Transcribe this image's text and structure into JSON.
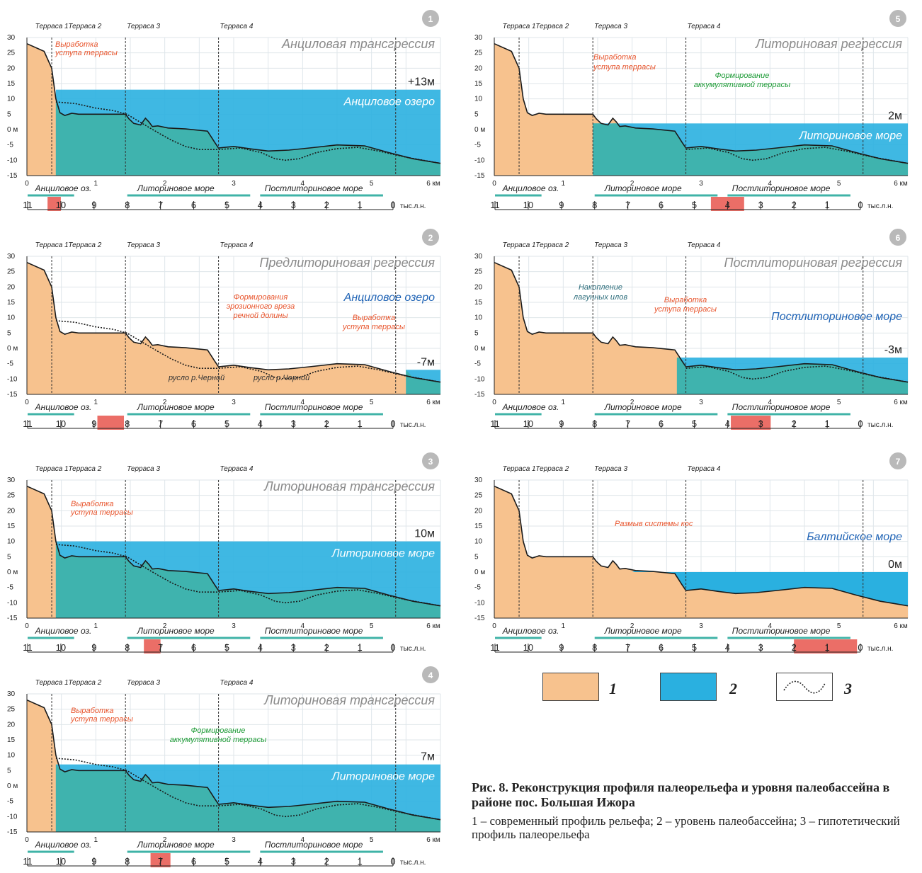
{
  "common": {
    "terraces": [
      "Терраса 1",
      "Терраса 2",
      "Терраса 3",
      "Терраса 4"
    ],
    "y_ticks": [
      "30",
      "25",
      "20",
      "15",
      "10",
      "5",
      "0 м",
      "-5",
      "-10",
      "-15"
    ],
    "x_ticks": [
      "0",
      "1",
      "2",
      "3",
      "4",
      "5",
      "6 км"
    ],
    "periods": [
      "Анциловое оз.",
      "Литориновое море",
      "Постлиториновое море"
    ],
    "time_ticks": [
      "11",
      "10",
      "9",
      "8",
      "7",
      "6",
      "5",
      "4",
      "3",
      "2",
      "1",
      "0"
    ],
    "time_unit": "тыс.л.н.",
    "colors": {
      "land": "#f7c28e",
      "water": "#2ab0e0",
      "teal": "#3fb3a7",
      "highlight": "#e8554c",
      "accum": "#1c9a35"
    }
  },
  "panels": [
    {
      "num": "1",
      "title": "Анциловая трансгрессия",
      "level_label": "+13м",
      "water_label": "Анциловое озеро",
      "annotations": [
        "Выработка",
        "уступа террасы"
      ]
    },
    {
      "num": "2",
      "title": "Предлиториновая регрессия",
      "level_label": "-7м",
      "water_label": "Анциловое озеро",
      "annotations": [
        "Формирования",
        "эрозионного вреза",
        "речной долины",
        "Выработка",
        "уступа террасы",
        "русло р.Черной",
        "русло р.Черной"
      ]
    },
    {
      "num": "3",
      "title": "Литориновая трансгрессия",
      "level_label": "10м",
      "water_label": "Литориновое море",
      "annotations": [
        "Выработка",
        "уступа террасы"
      ]
    },
    {
      "num": "4",
      "title": "Литориновая трансгрессия",
      "level_label": "7м",
      "water_label": "Литориновое море",
      "annotations": [
        "Выработка",
        "уступа террасы",
        "Формирование",
        "аккумулятивной террасы"
      ]
    },
    {
      "num": "5",
      "title": "Литориновая регрессия",
      "level_label": "2м",
      "water_label": "Литориновое море",
      "annotations": [
        "Выработка",
        "уступа террасы",
        "Формирование",
        "аккумулятивной террасы"
      ]
    },
    {
      "num": "6",
      "title": "Постлиториновая регрессия",
      "level_label": "-3м",
      "water_label": "Постлиториновое море",
      "annotations": [
        "Накопление",
        "лагунных илов",
        "Выработка",
        "уступа террасы"
      ]
    },
    {
      "num": "7",
      "title": "",
      "level_label": "0м",
      "water_label": "Балтийское море",
      "annotations": [
        "Размыв системы кос"
      ]
    }
  ],
  "legend": [
    "1",
    "2",
    "3"
  ],
  "caption": {
    "title": "Рис. 8. Реконструкция профиля палеорельефа и уровня палеобассейна в районе пос. Большая Ижора",
    "text": "1 – современный профиль рельефа; 2 – уровень палеобассейна; 3 – гипотетический профиль палеорельефа"
  }
}
